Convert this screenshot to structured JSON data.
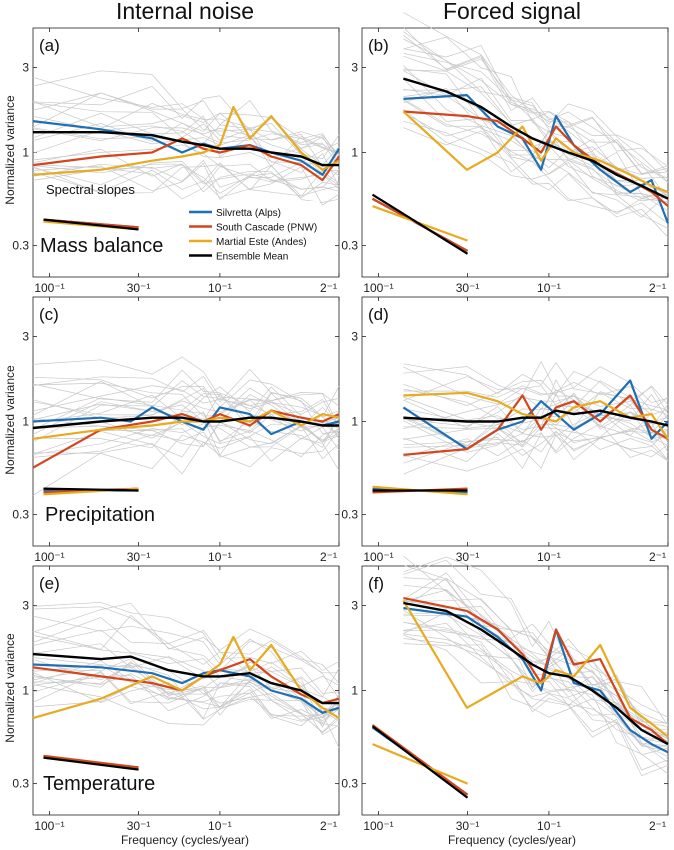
{
  "column_titles": [
    "Internal noise",
    "Forced signal"
  ],
  "xlabel": "Frequency (cycles/year)",
  "ylabel": "Normalized variance",
  "slopes_label": "Spectral slopes",
  "legend": [
    {
      "name": "Silvretta (Alps)",
      "color": "#1f6fb4"
    },
    {
      "name": "South Cascade (PNW)",
      "color": "#d2461c"
    },
    {
      "name": "Martial Este (Andes)",
      "color": "#e8aa1e"
    },
    {
      "name": "Ensemble Mean",
      "color": "#000000"
    }
  ],
  "colors": {
    "members": "#c8c8c8",
    "blue": "#1f6fb4",
    "red": "#d2461c",
    "yellow": "#e8aa1e",
    "black": "#000000"
  },
  "chart_data": [
    {
      "panel": "(a)",
      "variable": "Mass balance",
      "type": "line",
      "xscale": "log",
      "yscale": "log",
      "xlim": [
        0.008,
        0.5
      ],
      "ylim": [
        0.2,
        5
      ],
      "xticks": [
        0.01,
        0.0333,
        0.1,
        0.5
      ],
      "xticklabels": [
        "100⁻¹",
        "30⁻¹",
        "10⁻¹",
        "2⁻¹"
      ],
      "yticks": [
        0.3,
        1,
        3
      ],
      "yticklabels": [
        "0.3",
        "1",
        "3"
      ],
      "series": [
        {
          "name": "Silvretta (Alps)",
          "x": [
            0.008,
            0.02,
            0.04,
            0.06,
            0.08,
            0.1,
            0.15,
            0.2,
            0.3,
            0.4,
            0.5
          ],
          "y": [
            1.5,
            1.35,
            1.2,
            1.0,
            1.12,
            1.05,
            1.1,
            1.0,
            0.9,
            0.75,
            1.05
          ]
        },
        {
          "name": "South Cascade (PNW)",
          "x": [
            0.008,
            0.02,
            0.04,
            0.06,
            0.08,
            0.1,
            0.15,
            0.2,
            0.3,
            0.4,
            0.5
          ],
          "y": [
            0.85,
            0.95,
            1.0,
            1.2,
            1.05,
            1.0,
            1.1,
            0.95,
            0.85,
            0.7,
            0.95
          ]
        },
        {
          "name": "Martial Este (Andes)",
          "x": [
            0.008,
            0.02,
            0.04,
            0.06,
            0.08,
            0.1,
            0.12,
            0.15,
            0.2,
            0.3,
            0.4,
            0.5
          ],
          "y": [
            0.75,
            0.8,
            0.9,
            0.95,
            1.0,
            1.1,
            1.8,
            1.2,
            1.6,
            1.0,
            0.8,
            0.9
          ]
        },
        {
          "name": "Ensemble Mean",
          "x": [
            0.008,
            0.02,
            0.04,
            0.06,
            0.08,
            0.1,
            0.15,
            0.2,
            0.3,
            0.4,
            0.5
          ],
          "y": [
            1.3,
            1.3,
            1.25,
            1.15,
            1.1,
            1.05,
            1.05,
            1.0,
            0.95,
            0.85,
            0.85
          ]
        }
      ],
      "slopes": [
        {
          "name": "Silvretta (Alps)",
          "y": [
            0.42,
            0.38
          ]
        },
        {
          "name": "South Cascade (PNW)",
          "y": [
            0.42,
            0.38
          ]
        },
        {
          "name": "Martial Este (Andes)",
          "y": [
            0.41,
            0.37
          ]
        },
        {
          "name": "Ensemble Mean",
          "y": [
            0.42,
            0.37
          ]
        }
      ]
    },
    {
      "panel": "(b)",
      "variable": "Mass balance",
      "type": "line",
      "xscale": "log",
      "yscale": "log",
      "xlim": [
        0.008,
        0.5
      ],
      "ylim": [
        0.2,
        5
      ],
      "xticks": [
        0.01,
        0.0333,
        0.1,
        0.5
      ],
      "xticklabels": [
        "100⁻¹",
        "30⁻¹",
        "10⁻¹",
        "2⁻¹"
      ],
      "yticks": [
        0.3,
        1,
        3
      ],
      "yticklabels": [
        "0.3",
        "1",
        "3"
      ],
      "series": [
        {
          "name": "Silvretta (Alps)",
          "x": [
            0.014,
            0.033,
            0.05,
            0.07,
            0.09,
            0.11,
            0.14,
            0.2,
            0.3,
            0.4,
            0.5
          ],
          "y": [
            2.0,
            2.1,
            1.4,
            1.2,
            0.8,
            1.6,
            1.1,
            0.8,
            0.6,
            0.7,
            0.4
          ]
        },
        {
          "name": "South Cascade (PNW)",
          "x": [
            0.014,
            0.033,
            0.05,
            0.07,
            0.09,
            0.11,
            0.14,
            0.2,
            0.3,
            0.4,
            0.5
          ],
          "y": [
            1.7,
            1.6,
            1.5,
            1.2,
            1.0,
            1.4,
            1.1,
            0.85,
            0.7,
            0.6,
            0.5
          ]
        },
        {
          "name": "Martial Este (Andes)",
          "x": [
            0.014,
            0.033,
            0.05,
            0.07,
            0.09,
            0.11,
            0.14,
            0.2,
            0.3,
            0.4,
            0.5
          ],
          "y": [
            1.7,
            0.8,
            1.0,
            1.4,
            0.9,
            1.2,
            1.0,
            0.9,
            0.75,
            0.65,
            0.6
          ]
        },
        {
          "name": "Ensemble Mean",
          "x": [
            0.014,
            0.025,
            0.04,
            0.06,
            0.08,
            0.1,
            0.13,
            0.18,
            0.25,
            0.35,
            0.5
          ],
          "y": [
            2.6,
            2.2,
            1.8,
            1.4,
            1.2,
            1.1,
            1.0,
            0.9,
            0.75,
            0.65,
            0.55
          ]
        }
      ],
      "slopes": [
        {
          "name": "Silvretta (Alps)",
          "y": [
            0.55,
            0.28
          ]
        },
        {
          "name": "South Cascade (PNW)",
          "y": [
            0.55,
            0.28
          ]
        },
        {
          "name": "Martial Este (Andes)",
          "y": [
            0.5,
            0.32
          ]
        },
        {
          "name": "Ensemble Mean",
          "y": [
            0.58,
            0.27
          ]
        }
      ]
    },
    {
      "panel": "(c)",
      "variable": "Precipitation",
      "type": "line",
      "xscale": "log",
      "yscale": "log",
      "xlim": [
        0.008,
        0.5
      ],
      "ylim": [
        0.2,
        5
      ],
      "xticks": [
        0.01,
        0.0333,
        0.1,
        0.5
      ],
      "xticklabels": [
        "100⁻¹",
        "30⁻¹",
        "10⁻¹",
        "2⁻¹"
      ],
      "yticks": [
        0.3,
        1,
        3
      ],
      "yticklabels": [
        "0.3",
        "1",
        "3"
      ],
      "series": [
        {
          "name": "Silvretta (Alps)",
          "x": [
            0.008,
            0.02,
            0.03,
            0.04,
            0.06,
            0.08,
            0.1,
            0.15,
            0.2,
            0.3,
            0.4,
            0.5
          ],
          "y": [
            1.0,
            1.05,
            1.0,
            1.2,
            1.0,
            0.9,
            1.2,
            1.1,
            0.85,
            1.0,
            0.95,
            1.0
          ]
        },
        {
          "name": "South Cascade (PNW)",
          "x": [
            0.008,
            0.02,
            0.04,
            0.06,
            0.08,
            0.1,
            0.15,
            0.2,
            0.3,
            0.4,
            0.5
          ],
          "y": [
            0.55,
            0.9,
            1.0,
            1.1,
            1.0,
            1.1,
            0.95,
            1.15,
            1.05,
            1.0,
            1.1
          ]
        },
        {
          "name": "Martial Este (Andes)",
          "x": [
            0.008,
            0.02,
            0.04,
            0.06,
            0.08,
            0.1,
            0.15,
            0.2,
            0.3,
            0.4,
            0.5
          ],
          "y": [
            0.8,
            0.9,
            0.95,
            1.0,
            1.0,
            1.05,
            1.0,
            1.15,
            0.95,
            1.1,
            1.05
          ]
        },
        {
          "name": "Ensemble Mean",
          "x": [
            0.008,
            0.02,
            0.04,
            0.06,
            0.08,
            0.1,
            0.15,
            0.2,
            0.3,
            0.4,
            0.5
          ],
          "y": [
            0.92,
            1.0,
            1.05,
            1.05,
            1.0,
            1.0,
            1.05,
            1.05,
            1.0,
            0.95,
            0.95
          ]
        }
      ],
      "slopes": [
        {
          "name": "Silvretta (Alps)",
          "y": [
            0.41,
            0.41
          ]
        },
        {
          "name": "South Cascade (PNW)",
          "y": [
            0.4,
            0.42
          ]
        },
        {
          "name": "Martial Este (Andes)",
          "y": [
            0.39,
            0.42
          ]
        },
        {
          "name": "Ensemble Mean",
          "y": [
            0.42,
            0.41
          ]
        }
      ]
    },
    {
      "panel": "(d)",
      "variable": "Precipitation",
      "type": "line",
      "xscale": "log",
      "yscale": "log",
      "xlim": [
        0.008,
        0.5
      ],
      "ylim": [
        0.2,
        5
      ],
      "xticks": [
        0.01,
        0.0333,
        0.1,
        0.5
      ],
      "xticklabels": [
        "100⁻¹",
        "30⁻¹",
        "10⁻¹",
        "2⁻¹"
      ],
      "yticks": [
        0.3,
        1,
        3
      ],
      "yticklabels": [
        "0.3",
        "1",
        "3"
      ],
      "series": [
        {
          "name": "Silvretta (Alps)",
          "x": [
            0.014,
            0.033,
            0.05,
            0.07,
            0.09,
            0.11,
            0.14,
            0.2,
            0.3,
            0.4,
            0.5
          ],
          "y": [
            1.2,
            0.7,
            0.9,
            1.0,
            1.3,
            1.1,
            0.9,
            1.1,
            1.7,
            0.8,
            1.0
          ]
        },
        {
          "name": "South Cascade (PNW)",
          "x": [
            0.014,
            0.033,
            0.05,
            0.07,
            0.09,
            0.11,
            0.14,
            0.2,
            0.3,
            0.4,
            0.5
          ],
          "y": [
            0.65,
            0.7,
            0.9,
            1.4,
            0.9,
            1.2,
            1.3,
            1.0,
            1.4,
            0.9,
            0.8
          ]
        },
        {
          "name": "Martial Este (Andes)",
          "x": [
            0.014,
            0.033,
            0.05,
            0.07,
            0.09,
            0.11,
            0.14,
            0.2,
            0.3,
            0.4,
            0.5
          ],
          "y": [
            1.4,
            1.45,
            1.3,
            1.1,
            1.05,
            1.0,
            1.2,
            1.3,
            1.05,
            1.1,
            0.8
          ]
        },
        {
          "name": "Ensemble Mean",
          "x": [
            0.014,
            0.033,
            0.05,
            0.07,
            0.09,
            0.11,
            0.14,
            0.2,
            0.3,
            0.4,
            0.5
          ],
          "y": [
            1.05,
            1.0,
            1.0,
            1.05,
            1.05,
            1.15,
            1.1,
            1.15,
            1.05,
            1.0,
            0.95
          ]
        }
      ],
      "slopes": [
        {
          "name": "Silvretta (Alps)",
          "y": [
            0.42,
            0.4
          ]
        },
        {
          "name": "South Cascade (PNW)",
          "y": [
            0.4,
            0.42
          ]
        },
        {
          "name": "Martial Este (Andes)",
          "y": [
            0.43,
            0.39
          ]
        },
        {
          "name": "Ensemble Mean",
          "y": [
            0.41,
            0.41
          ]
        }
      ]
    },
    {
      "panel": "(e)",
      "variable": "Temperature",
      "type": "line",
      "xscale": "log",
      "yscale": "log",
      "xlim": [
        0.008,
        0.5
      ],
      "ylim": [
        0.2,
        5
      ],
      "xticks": [
        0.01,
        0.0333,
        0.1,
        0.5
      ],
      "xticklabels": [
        "100⁻¹",
        "30⁻¹",
        "10⁻¹",
        "2⁻¹"
      ],
      "yticks": [
        0.3,
        1,
        3
      ],
      "yticklabels": [
        "0.3",
        "1",
        "3"
      ],
      "series": [
        {
          "name": "Silvretta (Alps)",
          "x": [
            0.008,
            0.02,
            0.04,
            0.06,
            0.08,
            0.1,
            0.15,
            0.2,
            0.3,
            0.4,
            0.5
          ],
          "y": [
            1.4,
            1.35,
            1.25,
            1.1,
            1.25,
            1.3,
            1.2,
            1.0,
            0.9,
            0.75,
            0.8
          ]
        },
        {
          "name": "South Cascade (PNW)",
          "x": [
            0.008,
            0.02,
            0.04,
            0.06,
            0.08,
            0.1,
            0.15,
            0.2,
            0.3,
            0.4,
            0.5
          ],
          "y": [
            1.35,
            1.2,
            1.1,
            1.0,
            1.2,
            1.3,
            1.5,
            1.2,
            0.95,
            0.85,
            0.9
          ]
        },
        {
          "name": "Martial Este (Andes)",
          "x": [
            0.008,
            0.02,
            0.04,
            0.06,
            0.08,
            0.1,
            0.12,
            0.15,
            0.2,
            0.3,
            0.4,
            0.5
          ],
          "y": [
            0.7,
            0.9,
            1.2,
            1.0,
            1.2,
            1.4,
            2.0,
            1.3,
            1.8,
            1.0,
            0.8,
            0.7
          ]
        },
        {
          "name": "Ensemble Mean",
          "x": [
            0.008,
            0.02,
            0.03,
            0.05,
            0.08,
            0.1,
            0.15,
            0.2,
            0.3,
            0.4,
            0.5
          ],
          "y": [
            1.6,
            1.5,
            1.55,
            1.3,
            1.2,
            1.2,
            1.25,
            1.1,
            1.0,
            0.85,
            0.85
          ]
        }
      ],
      "slopes": [
        {
          "name": "Silvretta (Alps)",
          "y": [
            0.42,
            0.37
          ]
        },
        {
          "name": "South Cascade (PNW)",
          "y": [
            0.43,
            0.37
          ]
        },
        {
          "name": "Martial Este (Andes)",
          "y": [
            0.42,
            0.36
          ]
        },
        {
          "name": "Ensemble Mean",
          "y": [
            0.42,
            0.36
          ]
        }
      ]
    },
    {
      "panel": "(f)",
      "variable": "Temperature",
      "type": "line",
      "xscale": "log",
      "yscale": "log",
      "xlim": [
        0.008,
        0.5
      ],
      "ylim": [
        0.2,
        5
      ],
      "xticks": [
        0.01,
        0.0333,
        0.1,
        0.5
      ],
      "xticklabels": [
        "100⁻¹",
        "30⁻¹",
        "10⁻¹",
        "2⁻¹"
      ],
      "yticks": [
        0.3,
        1,
        3
      ],
      "yticklabels": [
        "0.3",
        "1",
        "3"
      ],
      "series": [
        {
          "name": "Silvretta (Alps)",
          "x": [
            0.014,
            0.033,
            0.05,
            0.07,
            0.09,
            0.11,
            0.14,
            0.2,
            0.3,
            0.4,
            0.5
          ],
          "y": [
            2.9,
            2.6,
            2.0,
            1.5,
            1.0,
            2.2,
            1.1,
            1.0,
            0.6,
            0.5,
            0.45
          ]
        },
        {
          "name": "South Cascade (PNW)",
          "x": [
            0.014,
            0.033,
            0.05,
            0.07,
            0.09,
            0.11,
            0.14,
            0.2,
            0.3,
            0.4,
            0.5
          ],
          "y": [
            3.3,
            2.8,
            2.2,
            1.6,
            1.1,
            2.2,
            1.4,
            1.5,
            0.7,
            0.6,
            0.5
          ]
        },
        {
          "name": "Martial Este (Andes)",
          "x": [
            0.014,
            0.033,
            0.05,
            0.07,
            0.09,
            0.11,
            0.14,
            0.2,
            0.3,
            0.4,
            0.5
          ],
          "y": [
            3.2,
            0.8,
            1.0,
            1.2,
            1.1,
            1.3,
            1.2,
            1.8,
            0.8,
            0.65,
            0.55
          ]
        },
        {
          "name": "Ensemble Mean",
          "x": [
            0.014,
            0.025,
            0.04,
            0.06,
            0.08,
            0.1,
            0.13,
            0.18,
            0.25,
            0.35,
            0.5
          ],
          "y": [
            3.1,
            2.8,
            2.2,
            1.7,
            1.4,
            1.25,
            1.2,
            1.0,
            0.8,
            0.6,
            0.5
          ]
        }
      ],
      "slopes": [
        {
          "name": "Silvretta (Alps)",
          "y": [
            0.62,
            0.26
          ]
        },
        {
          "name": "South Cascade (PNW)",
          "y": [
            0.64,
            0.26
          ]
        },
        {
          "name": "Martial Este (Andes)",
          "y": [
            0.5,
            0.3
          ]
        },
        {
          "name": "Ensemble Mean",
          "y": [
            0.63,
            0.25
          ]
        }
      ]
    }
  ]
}
